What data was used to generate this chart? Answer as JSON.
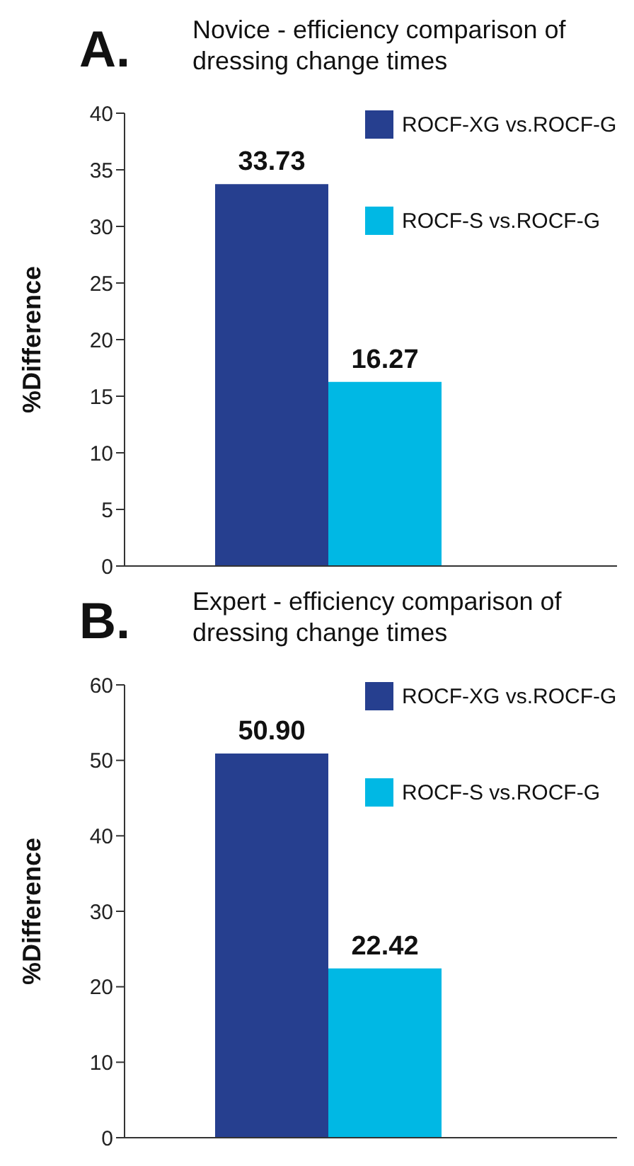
{
  "chart_data": [
    {
      "type": "bar",
      "title": "Novice - efficiency comparison of dressing change times",
      "annotations": [
        "A."
      ],
      "ylabel": "%Difference",
      "categories": [
        null
      ],
      "series": [
        {
          "name": "ROCF-XG vs.ROCF-G",
          "color": "#263f8f",
          "values": [
            33.73
          ],
          "value_labels": [
            "33.73"
          ]
        },
        {
          "name": "ROCF-S vs.ROCF-G",
          "color": "#00b8e4",
          "values": [
            16.27
          ],
          "value_labels": [
            "16.27"
          ]
        }
      ],
      "ylim": [
        0,
        40
      ],
      "yticks": [
        0,
        5,
        10,
        15,
        20,
        25,
        30,
        35,
        40
      ],
      "legend": "top right",
      "grid": false
    },
    {
      "type": "bar",
      "title": "Expert - efficiency comparison of dressing change times",
      "annotations": [
        "B."
      ],
      "ylabel": "%Difference",
      "categories": [
        null
      ],
      "series": [
        {
          "name": "ROCF-XG vs.ROCF-G",
          "color": "#263f8f",
          "values": [
            50.9
          ],
          "value_labels": [
            "50.90"
          ]
        },
        {
          "name": "ROCF-S vs.ROCF-G",
          "color": "#00b8e4",
          "values": [
            22.42
          ],
          "value_labels": [
            "22.42"
          ]
        }
      ],
      "ylim": [
        0,
        60
      ],
      "yticks": [
        0,
        10,
        20,
        30,
        40,
        50,
        60
      ],
      "legend": "top right",
      "grid": false
    }
  ]
}
